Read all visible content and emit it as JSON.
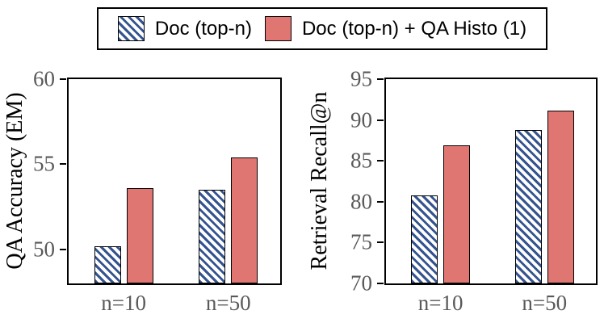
{
  "legend": {
    "items": [
      {
        "label": "Doc (top-n)",
        "swatch": "hatch-blue"
      },
      {
        "label": "Doc (top-n) + QA Histo (1)",
        "swatch": "solid-red"
      }
    ]
  },
  "colors": {
    "hatch_blue": "#35548F",
    "bar_red": "#DF7672",
    "bar_border": "#000000",
    "axis_border": "#000000",
    "tick_label_gray": "#595959"
  },
  "chart_data": [
    {
      "type": "bar",
      "title": "",
      "ylabel": "QA Accuracy (EM)",
      "xlabel": "",
      "categories": [
        "n=10",
        "n=50"
      ],
      "series": [
        {
          "name": "Doc (top-n)",
          "style": "hatch-blue",
          "values": [
            50.2,
            53.5
          ]
        },
        {
          "name": "Doc (top-n) + QA Histo (1)",
          "style": "solid-red",
          "values": [
            53.6,
            55.4
          ]
        }
      ],
      "ylim": [
        48,
        60
      ],
      "yticks": [
        50,
        55,
        60
      ],
      "grid": false,
      "legend_position": "top-shared"
    },
    {
      "type": "bar",
      "title": "",
      "ylabel": "Retrieval Recall@n",
      "xlabel": "",
      "categories": [
        "n=10",
        "n=50"
      ],
      "series": [
        {
          "name": "Doc (top-n)",
          "style": "hatch-blue",
          "values": [
            80.8,
            88.8
          ]
        },
        {
          "name": "Doc (top-n) + QA Histo (1)",
          "style": "solid-red",
          "values": [
            86.9,
            91.2
          ]
        }
      ],
      "ylim": [
        70,
        95
      ],
      "yticks": [
        70,
        75,
        80,
        85,
        90,
        95
      ],
      "grid": false,
      "legend_position": "top-shared"
    }
  ]
}
